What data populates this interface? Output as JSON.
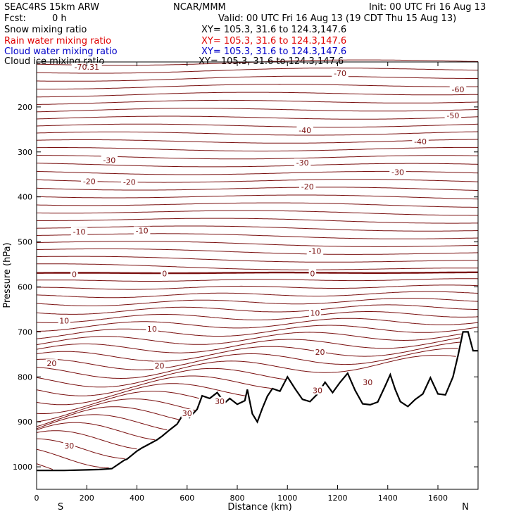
{
  "header": {
    "model": "SEAC4RS 15km ARW",
    "org": "NCAR/MMM",
    "init": "Init: 00 UTC Fri 16 Aug 13",
    "fcst_label": "Fcst:",
    "fcst_value": "0 h",
    "valid": "Valid: 00 UTC Fri 16 Aug 13 (19 CDT Thu 15 Aug 13)"
  },
  "fields": [
    {
      "label": "Snow mixing ratio",
      "xy": "XY= 105.3, 31.6 to 124.3,147.6",
      "color": "#000000"
    },
    {
      "label": "Rain water mixing ratio",
      "xy": "XY= 105.3, 31.6 to 124.3,147.6",
      "color": "#e00000"
    },
    {
      "label": "Cloud water mixing ratio",
      "xy": "XY= 105.3, 31.6 to 124.3,147.6",
      "color": "#0000c8"
    },
    {
      "label": "Cloud ice mixing ratio",
      "xy": "XY= 105.3, 31.6 to 124.3,147.6",
      "color": "#000000"
    }
  ],
  "chart_data": {
    "type": "line",
    "title": "",
    "xlabel": "Distance (km)",
    "ylabel": "Pressure (hPa)",
    "xlim": [
      0,
      1760
    ],
    "ylim": [
      1050,
      100
    ],
    "x_ticks": [
      0,
      200,
      400,
      600,
      800,
      1000,
      1200,
      1400,
      1600
    ],
    "y_ticks": [
      200,
      300,
      400,
      500,
      600,
      700,
      800,
      900,
      1000
    ],
    "y_tick_labels": [
      "200",
      "300",
      "400",
      "500",
      "600",
      "700",
      "800",
      "900",
      "1000"
    ],
    "x_tick_labels": [
      "0",
      "200",
      "400",
      "600",
      "800",
      "1000",
      "1200",
      "1400",
      "1600"
    ],
    "endpoint_left": "S",
    "endpoint_right": "N",
    "contour_color": "#7a1010",
    "terrain_color": "#000000",
    "isotherm_levels": [
      -70.31,
      -70,
      -60,
      -50,
      -40,
      -30,
      -20,
      -10,
      0,
      10,
      20,
      30
    ],
    "contour_labels": [
      {
        "text": "-70.31",
        "x": 200,
        "p": 111
      },
      {
        "text": "-70",
        "x": 1210,
        "p": 125
      },
      {
        "text": "-60",
        "x": 1680,
        "p": 161
      },
      {
        "text": "-50",
        "x": 1660,
        "p": 219
      },
      {
        "text": "-40",
        "x": 1070,
        "p": 252
      },
      {
        "text": "-40",
        "x": 1530,
        "p": 277
      },
      {
        "text": "-30",
        "x": 290,
        "p": 318
      },
      {
        "text": "-30",
        "x": 1060,
        "p": 324
      },
      {
        "text": "-30",
        "x": 1440,
        "p": 345
      },
      {
        "text": "-20",
        "x": 210,
        "p": 365
      },
      {
        "text": "-20",
        "x": 370,
        "p": 367
      },
      {
        "text": "-20",
        "x": 1080,
        "p": 377
      },
      {
        "text": "-10",
        "x": 170,
        "p": 477
      },
      {
        "text": "-10",
        "x": 420,
        "p": 475
      },
      {
        "text": "-10",
        "x": 1110,
        "p": 520
      },
      {
        "text": "0",
        "x": 150,
        "p": 572
      },
      {
        "text": "0",
        "x": 510,
        "p": 570
      },
      {
        "text": "0",
        "x": 1100,
        "p": 570
      },
      {
        "text": "10",
        "x": 110,
        "p": 675
      },
      {
        "text": "10",
        "x": 460,
        "p": 693
      },
      {
        "text": "10",
        "x": 1110,
        "p": 658
      },
      {
        "text": "20",
        "x": 60,
        "p": 770
      },
      {
        "text": "20",
        "x": 490,
        "p": 775
      },
      {
        "text": "20",
        "x": 1130,
        "p": 745
      },
      {
        "text": "30",
        "x": 130,
        "p": 953
      },
      {
        "text": "30",
        "x": 600,
        "p": 881
      },
      {
        "text": "30",
        "x": 730,
        "p": 854
      },
      {
        "text": "30",
        "x": 1120,
        "p": 830
      },
      {
        "text": "30",
        "x": 1320,
        "p": 812
      }
    ],
    "terrain": {
      "x": [
        0,
        110,
        250,
        300,
        350,
        360,
        400,
        420,
        440,
        480,
        500,
        530,
        560,
        580,
        600,
        610,
        640,
        660,
        690,
        720,
        750,
        770,
        800,
        830,
        840,
        860,
        880,
        900,
        920,
        940,
        970,
        1000,
        1030,
        1060,
        1090,
        1120,
        1150,
        1180,
        1210,
        1240,
        1270,
        1300,
        1330,
        1360,
        1390,
        1410,
        1430,
        1450,
        1480,
        1510,
        1540,
        1570,
        1600,
        1630,
        1660,
        1680,
        1700,
        1720,
        1740,
        1760
      ],
      "y": [
        1008,
        1008,
        1006,
        1004,
        985,
        983,
        965,
        958,
        952,
        940,
        932,
        918,
        905,
        887,
        877,
        890,
        872,
        842,
        848,
        835,
        858,
        848,
        861,
        853,
        828,
        882,
        900,
        870,
        843,
        826,
        832,
        800,
        826,
        850,
        855,
        838,
        812,
        835,
        812,
        792,
        830,
        860,
        862,
        856,
        820,
        795,
        828,
        855,
        866,
        850,
        838,
        802,
        838,
        840,
        800,
        753,
        700,
        700,
        742,
        742
      ]
    }
  }
}
